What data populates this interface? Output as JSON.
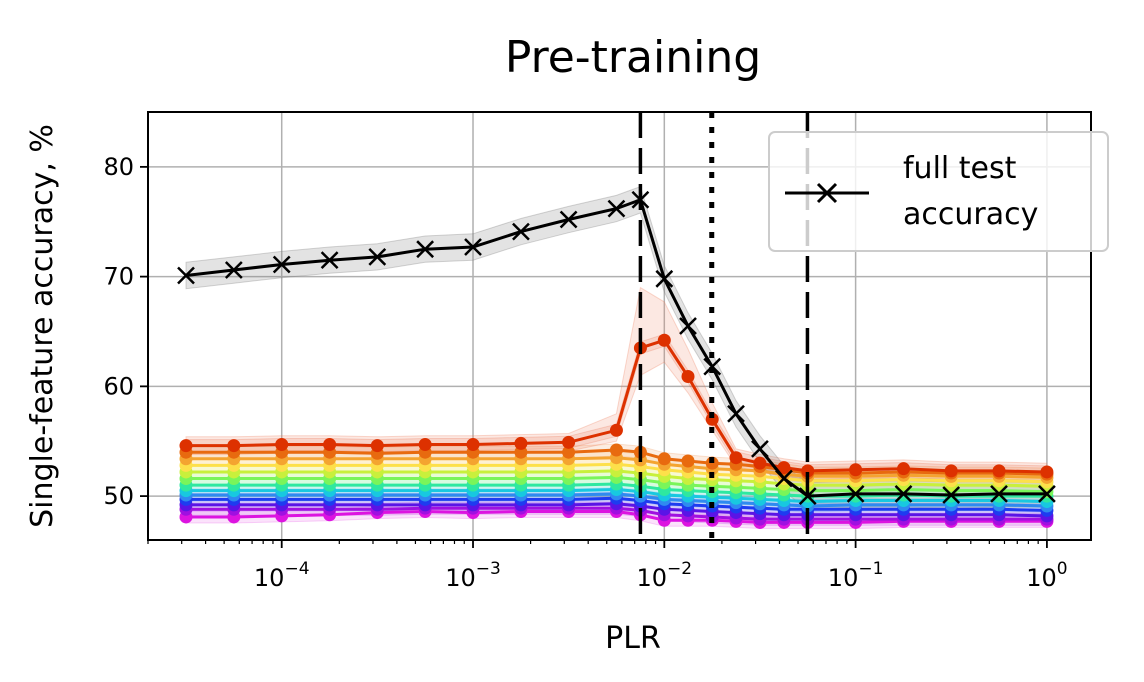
{
  "chart_data": {
    "type": "line",
    "title": "Pre-training",
    "xlabel": "PLR",
    "ylabel": "Single-feature accuracy, %",
    "xscale": "log",
    "xlim": [
      2e-05,
      1.7
    ],
    "ylim": [
      46,
      85
    ],
    "yticks": [
      50,
      60,
      70,
      80
    ],
    "xticks": [
      {
        "base": "10",
        "exp": "−4",
        "value": 0.0001
      },
      {
        "base": "10",
        "exp": "−3",
        "value": 0.001
      },
      {
        "base": "10",
        "exp": "−2",
        "value": 0.01
      },
      {
        "base": "10",
        "exp": "−1",
        "value": 0.1
      },
      {
        "base": "10",
        "exp": "0",
        "value": 1
      }
    ],
    "grid": true,
    "legend": {
      "position": "top-right",
      "label_lines": [
        "full test",
        "accuracy"
      ]
    },
    "x": [
      3.16e-05,
      5.62e-05,
      0.0001,
      0.000178,
      0.000316,
      0.000562,
      0.001,
      0.00178,
      0.00316,
      0.00562,
      0.0075,
      0.01,
      0.0133,
      0.0178,
      0.0237,
      0.0316,
      0.0422,
      0.0562,
      0.1,
      0.178,
      0.316,
      0.562,
      1.0
    ],
    "full_test": {
      "name": "full test accuracy",
      "color": "#000000",
      "values": [
        70.1,
        70.6,
        71.1,
        71.5,
        71.8,
        72.5,
        72.7,
        74.1,
        75.2,
        76.2,
        77.0,
        69.8,
        65.5,
        61.8,
        57.5,
        54.3,
        51.6,
        50.0,
        50.2,
        50.2,
        50.1,
        50.2,
        50.2
      ],
      "band": 1.2
    },
    "feature_series": [
      {
        "color": "#dd3100",
        "values": [
          54.6,
          54.6,
          54.7,
          54.7,
          54.6,
          54.7,
          54.7,
          54.8,
          54.9,
          56.0,
          63.5,
          64.2,
          60.9,
          57.0,
          53.5,
          53.0,
          52.6,
          52.3,
          52.4,
          52.5,
          52.3,
          52.3,
          52.2
        ]
      },
      {
        "color": "#e86a0f",
        "values": [
          54.0,
          54.0,
          54.0,
          54.0,
          53.9,
          54.0,
          54.0,
          54.0,
          54.0,
          54.2,
          54.0,
          53.4,
          53.2,
          53.0,
          52.9,
          52.7,
          52.4,
          52.1,
          52.1,
          52.2,
          52.1,
          52.1,
          52.0
        ]
      },
      {
        "color": "#f4a430",
        "values": [
          53.4,
          53.4,
          53.4,
          53.4,
          53.4,
          53.4,
          53.4,
          53.4,
          53.4,
          53.5,
          53.3,
          52.9,
          52.7,
          52.5,
          52.4,
          52.3,
          52.0,
          51.8,
          51.8,
          51.9,
          51.8,
          51.8,
          51.7
        ]
      },
      {
        "color": "#fde04a",
        "values": [
          52.8,
          52.8,
          52.8,
          52.8,
          52.8,
          52.8,
          52.8,
          52.8,
          52.8,
          52.9,
          52.7,
          52.4,
          52.2,
          52.0,
          51.9,
          51.8,
          51.6,
          51.4,
          51.4,
          51.5,
          51.4,
          51.4,
          51.3
        ]
      },
      {
        "color": "#c8f03c",
        "values": [
          52.2,
          52.2,
          52.2,
          52.2,
          52.2,
          52.2,
          52.2,
          52.2,
          52.2,
          52.3,
          52.1,
          51.8,
          51.6,
          51.5,
          51.4,
          51.3,
          51.1,
          51.0,
          51.0,
          51.1,
          51.0,
          51.0,
          50.9
        ]
      },
      {
        "color": "#7af55a",
        "values": [
          51.6,
          51.6,
          51.6,
          51.6,
          51.6,
          51.6,
          51.6,
          51.6,
          51.6,
          51.7,
          51.5,
          51.2,
          51.0,
          50.9,
          50.8,
          50.7,
          50.6,
          50.5,
          50.5,
          50.6,
          50.5,
          50.5,
          50.4
        ]
      },
      {
        "color": "#2ee8a0",
        "values": [
          51.0,
          51.0,
          51.0,
          51.0,
          51.0,
          51.0,
          51.0,
          51.0,
          51.0,
          51.1,
          50.9,
          50.6,
          50.5,
          50.4,
          50.3,
          50.2,
          50.1,
          50.0,
          50.0,
          50.1,
          50.0,
          50.0,
          50.0
        ]
      },
      {
        "color": "#18c8e0",
        "values": [
          50.5,
          50.5,
          50.5,
          50.5,
          50.5,
          50.5,
          50.5,
          50.5,
          50.5,
          50.6,
          50.4,
          50.1,
          50.0,
          49.9,
          49.8,
          49.7,
          49.6,
          49.5,
          49.6,
          49.6,
          49.6,
          49.6,
          49.5
        ]
      },
      {
        "color": "#2f8af0",
        "values": [
          50.1,
          50.1,
          50.1,
          50.1,
          50.1,
          50.1,
          50.1,
          50.1,
          50.1,
          50.2,
          50.0,
          49.7,
          49.6,
          49.5,
          49.4,
          49.3,
          49.2,
          49.1,
          49.2,
          49.2,
          49.2,
          49.2,
          49.1
        ]
      },
      {
        "color": "#1e3cf0",
        "values": [
          49.7,
          49.7,
          49.7,
          49.7,
          49.7,
          49.7,
          49.7,
          49.7,
          49.7,
          49.8,
          49.6,
          49.3,
          49.2,
          49.1,
          49.0,
          48.9,
          48.8,
          48.8,
          48.8,
          48.8,
          48.8,
          48.8,
          48.7
        ]
      },
      {
        "color": "#5a14e6",
        "values": [
          49.2,
          49.2,
          49.2,
          49.2,
          49.2,
          49.2,
          49.2,
          49.2,
          49.2,
          49.3,
          49.1,
          48.8,
          48.7,
          48.6,
          48.5,
          48.4,
          48.3,
          48.3,
          48.3,
          48.3,
          48.3,
          48.3,
          48.2
        ]
      },
      {
        "color": "#a010e0",
        "values": [
          48.8,
          48.8,
          48.8,
          48.8,
          48.8,
          48.9,
          48.9,
          48.9,
          48.9,
          48.9,
          48.7,
          48.3,
          48.2,
          48.1,
          48.0,
          47.9,
          47.9,
          47.9,
          47.9,
          47.9,
          47.9,
          47.9,
          47.9
        ]
      },
      {
        "color": "#dc14e0",
        "values": [
          48.1,
          48.1,
          48.2,
          48.3,
          48.5,
          48.6,
          48.5,
          48.6,
          48.6,
          48.6,
          48.3,
          47.8,
          47.8,
          47.8,
          47.7,
          47.6,
          47.6,
          47.6,
          47.6,
          47.7,
          47.7,
          47.7,
          47.7
        ]
      }
    ],
    "vertical_lines": [
      {
        "x": 0.0075,
        "style": "dashed",
        "color": "#000000"
      },
      {
        "x": 0.0177,
        "style": "dotted",
        "color": "#000000"
      },
      {
        "x": 0.056,
        "style": "dashed",
        "color": "#000000"
      }
    ]
  }
}
